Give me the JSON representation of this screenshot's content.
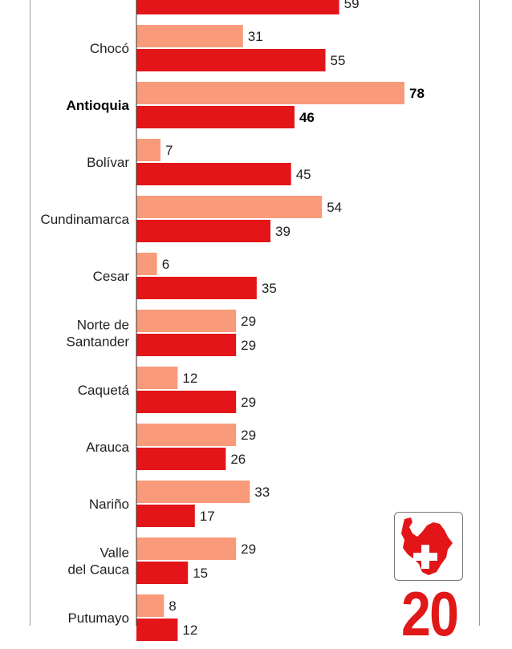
{
  "chart_data": {
    "type": "bar",
    "orientation": "horizontal",
    "categories": [
      "",
      "Chocó",
      "Antioquia",
      "Bolívar",
      "Cundinamarca",
      "Cesar",
      "Norte de Santander",
      "Caquetá",
      "Arauca",
      "Nariño",
      "Valle del Cauca",
      "Putumayo"
    ],
    "highlight": "Antioquia",
    "series": [
      {
        "color": "#f99a7a",
        "values": [
          null,
          31,
          78,
          7,
          54,
          6,
          29,
          12,
          29,
          33,
          29,
          8
        ]
      },
      {
        "color": "#e31519",
        "values": [
          59,
          55,
          46,
          45,
          39,
          35,
          29,
          29,
          26,
          17,
          15,
          12
        ]
      }
    ],
    "grid": false,
    "legend": "none"
  },
  "badge": {
    "icon": "antioquia-map-cross-icon",
    "color": "#e31519"
  },
  "big_number": "20"
}
